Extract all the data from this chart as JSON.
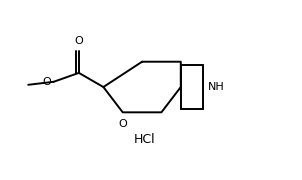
{
  "background_color": "#ffffff",
  "line_color": "#000000",
  "line_width": 1.4,
  "hcl_label": "HCl",
  "o_carbonyl_label": "O",
  "o_ring_label": "O",
  "o_ester_label": "O",
  "nh_label": "NH",
  "figsize": [
    3.02,
    1.8
  ],
  "dpi": 100,
  "xlim": [
    0,
    10
  ],
  "ylim": [
    0,
    6
  ],
  "spiro_x": 6.0,
  "spiro_y": 3.1
}
